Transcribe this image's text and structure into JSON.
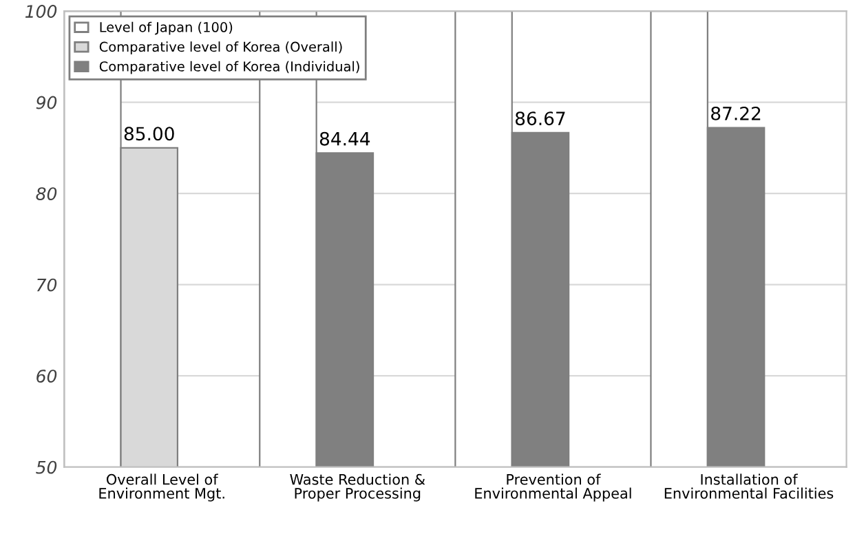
{
  "chart_data": {
    "type": "bar",
    "categories": [
      "Overall Level of Environment Mgt.",
      "Waste Reduction & Proper Processing",
      "Prevention of Environmental Appeal",
      "Installation of Environmental Facilities"
    ],
    "series": [
      {
        "name": "Level of Japan (100)",
        "color": "#ffffff",
        "values": [
          100,
          100,
          100,
          100
        ]
      },
      {
        "name": "Comparative level of Korea (Overall)",
        "color": "#d9d9d9",
        "values": [
          85.0,
          null,
          null,
          null
        ],
        "value_labels": [
          "85.00",
          null,
          null,
          null
        ]
      },
      {
        "name": "Comparative level of Korea (Individual)",
        "color": "#808080",
        "values": [
          null,
          84.44,
          86.67,
          87.22
        ],
        "value_labels": [
          null,
          "84.44",
          "86.67",
          "87.22"
        ]
      }
    ],
    "ylim": [
      50,
      100
    ],
    "yticks": [
      50,
      60,
      70,
      80,
      90,
      100
    ],
    "grid": "y",
    "legend": "top left"
  }
}
